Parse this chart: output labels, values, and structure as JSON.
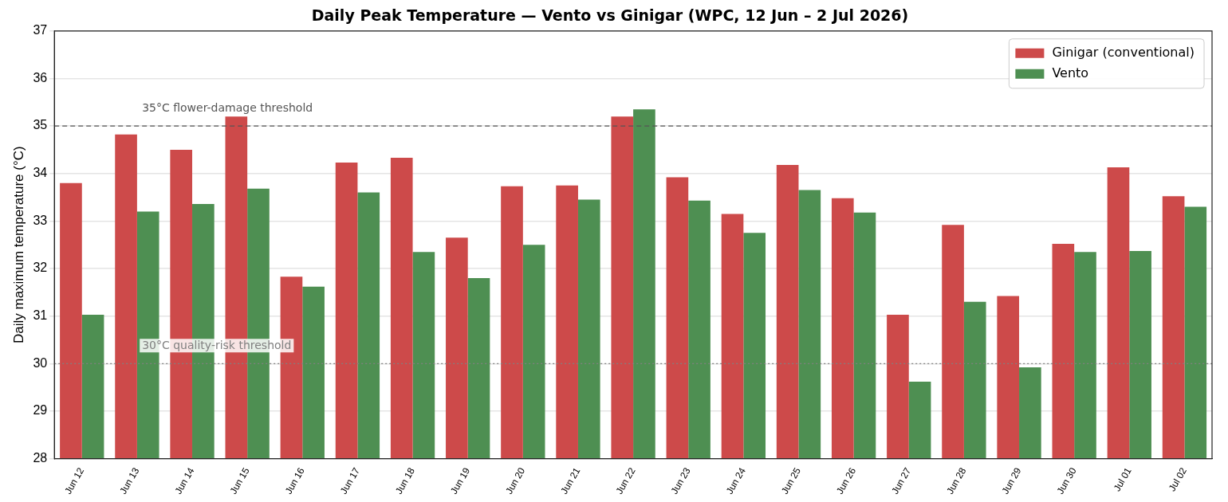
{
  "chart_data": {
    "type": "bar",
    "title": "Daily Peak Temperature — Vento vs Ginigar (WPC, 12 Jun – 2 Jul 2026)",
    "ylabel": "Daily maximum temperature (°C)",
    "categories": [
      "Jun 12",
      "Jun 13",
      "Jun 14",
      "Jun 15",
      "Jun 16",
      "Jun 17",
      "Jun 18",
      "Jun 19",
      "Jun 20",
      "Jun 21",
      "Jun 22",
      "Jun 23",
      "Jun 24",
      "Jun 25",
      "Jun 26",
      "Jun 27",
      "Jun 28",
      "Jun 29",
      "Jun 30",
      "Jul 01",
      "Jul 02"
    ],
    "series": [
      {
        "name": "Ginigar (conventional)",
        "color": "#cd4a4a",
        "values": [
          33.8,
          34.82,
          34.5,
          35.2,
          31.83,
          34.23,
          34.33,
          32.65,
          33.73,
          33.75,
          35.2,
          33.92,
          33.15,
          34.18,
          33.48,
          31.03,
          32.92,
          31.42,
          32.52,
          34.13,
          33.52
        ]
      },
      {
        "name": "Vento",
        "color": "#4e8f52",
        "values": [
          31.03,
          33.2,
          33.36,
          33.68,
          31.62,
          33.6,
          32.35,
          31.8,
          32.5,
          33.45,
          35.35,
          33.43,
          32.75,
          33.65,
          33.18,
          29.62,
          31.3,
          29.92,
          32.35,
          32.37,
          33.3
        ]
      }
    ],
    "ylim": [
      28,
      37
    ],
    "yticks": [
      28,
      29,
      30,
      31,
      32,
      33,
      34,
      35,
      36,
      37
    ],
    "grid": "y",
    "legend": "top right",
    "ref_lines": [
      {
        "axis": "y",
        "value": 35,
        "label": "35°C flower-damage threshold",
        "color": "#555555",
        "line_style": "dashed"
      },
      {
        "axis": "y",
        "value": 30,
        "label": "30°C quality-risk threshold",
        "color": "#808080",
        "line_style": "dotted"
      }
    ]
  }
}
